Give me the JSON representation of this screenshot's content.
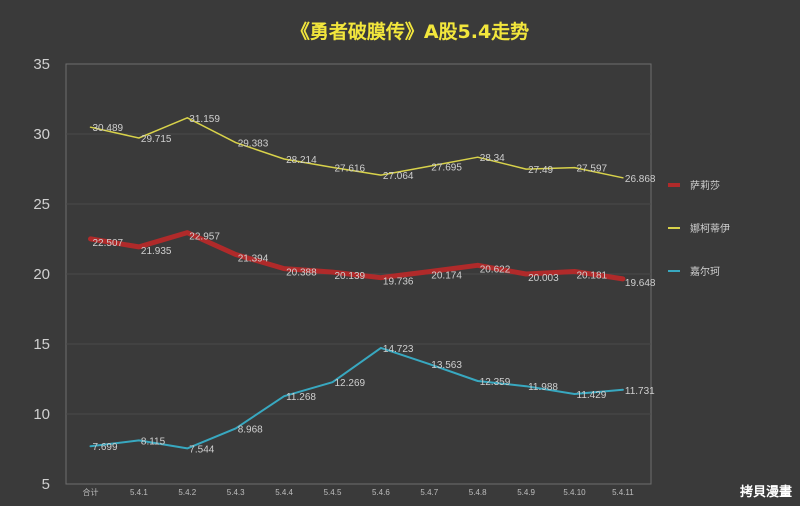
{
  "watermark": "拷貝漫畫",
  "chart_data": {
    "type": "line",
    "title": "《勇者破膜传》A股5.4走势",
    "categories": [
      "合计",
      "5.4.1",
      "5.4.2",
      "5.4.3",
      "5.4.4",
      "5.4.5",
      "5.4.6",
      "5.4.7",
      "5.4.8",
      "5.4.9",
      "5.4.10",
      "5.4.11"
    ],
    "ylim": [
      5,
      35
    ],
    "yticks": [
      5,
      10,
      15,
      20,
      25,
      30,
      35
    ],
    "grid": true,
    "legend_position": "right",
    "series": [
      {
        "name": "萨莉莎",
        "color": "#b02a2a",
        "values": [
          22.507,
          21.935,
          22.957,
          21.394,
          20.388,
          20.139,
          19.736,
          20.174,
          20.622,
          20.003,
          20.181,
          19.648
        ]
      },
      {
        "name": "娜柯蒂伊",
        "color": "#d8d24a",
        "values": [
          30.489,
          29.715,
          31.159,
          29.383,
          28.214,
          27.616,
          27.064,
          27.695,
          28.34,
          27.49,
          27.597,
          26.868
        ]
      },
      {
        "name": "嘉尔珂",
        "color": "#38a8c0",
        "values": [
          7.699,
          8.115,
          7.544,
          8.968,
          11.268,
          12.269,
          14.723,
          13.563,
          12.359,
          11.988,
          11.429,
          11.731
        ]
      }
    ]
  }
}
